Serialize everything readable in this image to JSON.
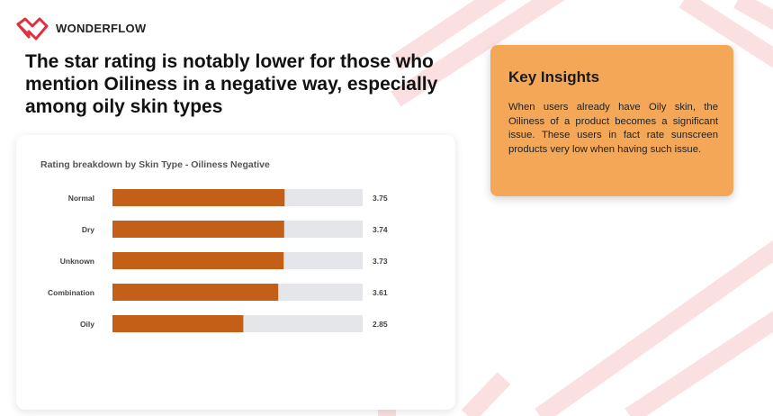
{
  "brand": {
    "name": "WONDERFLOW",
    "logo_icon": "wonderflow-logo-icon"
  },
  "headline": "The star rating is notably lower for those who mention Oiliness in a negative way, especially among oily skin types",
  "colors": {
    "bar": "#C45F17",
    "track": "#E4E6EA",
    "accent_box": "#F4A857",
    "deco": "#FBE0E2"
  },
  "chart_data": {
    "type": "bar",
    "orientation": "horizontal",
    "title": "Rating breakdown by Skin Type - Oiliness Negative",
    "categories": [
      "Normal",
      "Dry",
      "Unknown",
      "Combination",
      "Oily"
    ],
    "values": [
      3.75,
      3.74,
      3.73,
      3.61,
      2.85
    ],
    "value_labels": [
      "3.75",
      "3.74",
      "3.73",
      "3.61",
      "2.85"
    ],
    "xlim": [
      0,
      5.45
    ],
    "xlabel": "",
    "ylabel": "",
    "grid": false
  },
  "insights": {
    "title": "Key Insights",
    "body": "When users already have Oily skin, the Oiliness of a product becomes a significant issue. These users in fact rate sunscreen products very low when having such issue."
  }
}
